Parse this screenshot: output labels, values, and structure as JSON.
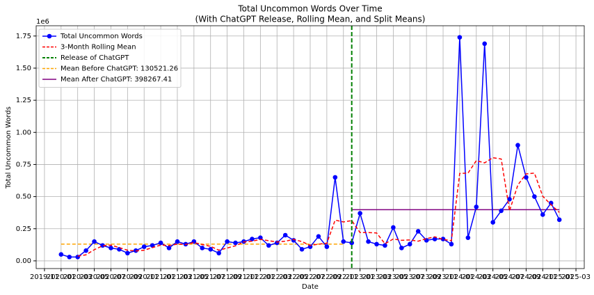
{
  "chart_data": {
    "type": "line",
    "title": "Total Uncommon Words Over Time",
    "subtitle": "(With ChatGPT Release, Rolling Mean, and Split Means)",
    "x_label": "Date",
    "y_label": "Total Uncommon Words",
    "y_offset_label": "1e6",
    "grid": true,
    "legend": "upper left",
    "x": [
      "2020-01",
      "2020-02",
      "2020-03",
      "2020-04",
      "2020-05",
      "2020-06",
      "2020-07",
      "2020-08",
      "2020-09",
      "2020-10",
      "2020-11",
      "2020-12",
      "2021-01",
      "2021-02",
      "2021-03",
      "2021-04",
      "2021-05",
      "2021-06",
      "2021-07",
      "2021-08",
      "2021-09",
      "2021-10",
      "2021-11",
      "2021-12",
      "2022-01",
      "2022-02",
      "2022-03",
      "2022-04",
      "2022-05",
      "2022-06",
      "2022-07",
      "2022-08",
      "2022-09",
      "2022-10",
      "2022-11",
      "2022-12",
      "2023-01",
      "2023-02",
      "2023-03",
      "2023-04",
      "2023-05",
      "2023-06",
      "2023-07",
      "2023-08",
      "2023-09",
      "2023-10",
      "2023-11",
      "2023-12",
      "2024-01",
      "2024-02",
      "2024-03",
      "2024-04",
      "2024-05",
      "2024-06",
      "2024-07",
      "2024-08",
      "2024-09",
      "2024-10",
      "2024-11",
      "2024-12",
      "2025-01"
    ],
    "series": [
      {
        "name": "Total Uncommon Words",
        "color": "#0000ff",
        "style": "line-marker",
        "values": [
          0.05,
          0.03,
          0.03,
          0.08,
          0.15,
          0.12,
          0.1,
          0.09,
          0.06,
          0.08,
          0.11,
          0.12,
          0.14,
          0.1,
          0.15,
          0.13,
          0.15,
          0.1,
          0.09,
          0.06,
          0.15,
          0.14,
          0.15,
          0.17,
          0.18,
          0.12,
          0.14,
          0.2,
          0.16,
          0.09,
          0.11,
          0.19,
          0.11,
          0.65,
          0.15,
          0.14,
          0.37,
          0.15,
          0.13,
          0.12,
          0.26,
          0.1,
          0.13,
          0.23,
          0.16,
          0.17,
          0.17,
          0.13,
          1.74,
          0.18,
          0.42,
          1.69,
          0.3,
          0.39,
          0.48,
          0.9,
          0.65,
          0.5,
          0.36,
          0.45,
          0.32
        ]
      },
      {
        "name": "3-Month Rolling Mean",
        "color": "#ff0000",
        "style": "dashed",
        "values": [
          null,
          null,
          0.037,
          0.047,
          0.087,
          0.117,
          0.123,
          0.103,
          0.083,
          0.077,
          0.083,
          0.103,
          0.123,
          0.12,
          0.13,
          0.127,
          0.143,
          0.127,
          0.113,
          0.083,
          0.1,
          0.117,
          0.147,
          0.153,
          0.167,
          0.157,
          0.147,
          0.153,
          0.167,
          0.15,
          0.12,
          0.13,
          0.137,
          0.317,
          0.303,
          0.313,
          0.22,
          0.22,
          0.217,
          0.133,
          0.17,
          0.16,
          0.163,
          0.153,
          0.173,
          0.187,
          0.167,
          0.157,
          0.68,
          0.683,
          0.78,
          0.763,
          0.803,
          0.793,
          0.39,
          0.59,
          0.677,
          0.683,
          0.503,
          0.437,
          0.377
        ]
      }
    ],
    "vlines": [
      {
        "name": "Release of ChatGPT",
        "color": "#008000",
        "x": "2022-12"
      }
    ],
    "hlines": [
      {
        "name": "Mean Before ChatGPT: 130521.26",
        "color": "#ffa500",
        "style": "dashed",
        "value": 0.13052126,
        "x": [
          "2020-01",
          "2022-11"
        ]
      },
      {
        "name": "Mean After ChatGPT: 398267.41",
        "color": "#800080",
        "style": "solid",
        "value": 0.39826741,
        "x": [
          "2022-12",
          "2025-01"
        ]
      }
    ],
    "ylim": [
      -0.06,
      1.83
    ],
    "yticks": [
      {
        "value": 0,
        "label": "0.00"
      },
      {
        "value": 0.25,
        "label": "0.25"
      },
      {
        "value": 0.5,
        "label": "0.50"
      },
      {
        "value": 0.75,
        "label": "0.75"
      },
      {
        "value": 1,
        "label": "1.00"
      },
      {
        "value": 1.25,
        "label": "1.25"
      },
      {
        "value": 1.5,
        "label": "1.50"
      },
      {
        "value": 1.75,
        "label": "1.75"
      }
    ],
    "xlim": [
      "2019-10",
      "2025-04"
    ],
    "xticks": [
      "2019-11",
      "2020-01",
      "2020-03",
      "2020-05",
      "2020-07",
      "2020-09",
      "2020-11",
      "2021-01",
      "2021-03",
      "2021-05",
      "2021-07",
      "2021-09",
      "2021-11",
      "2022-01",
      "2022-03",
      "2022-05",
      "2022-07",
      "2022-09",
      "2022-11",
      "2023-01",
      "2023-03",
      "2023-05",
      "2023-07",
      "2023-09",
      "2023-11",
      "2024-01",
      "2024-03",
      "2024-05",
      "2024-07",
      "2024-09",
      "2024-11",
      "2025-01",
      "2025-03"
    ]
  }
}
